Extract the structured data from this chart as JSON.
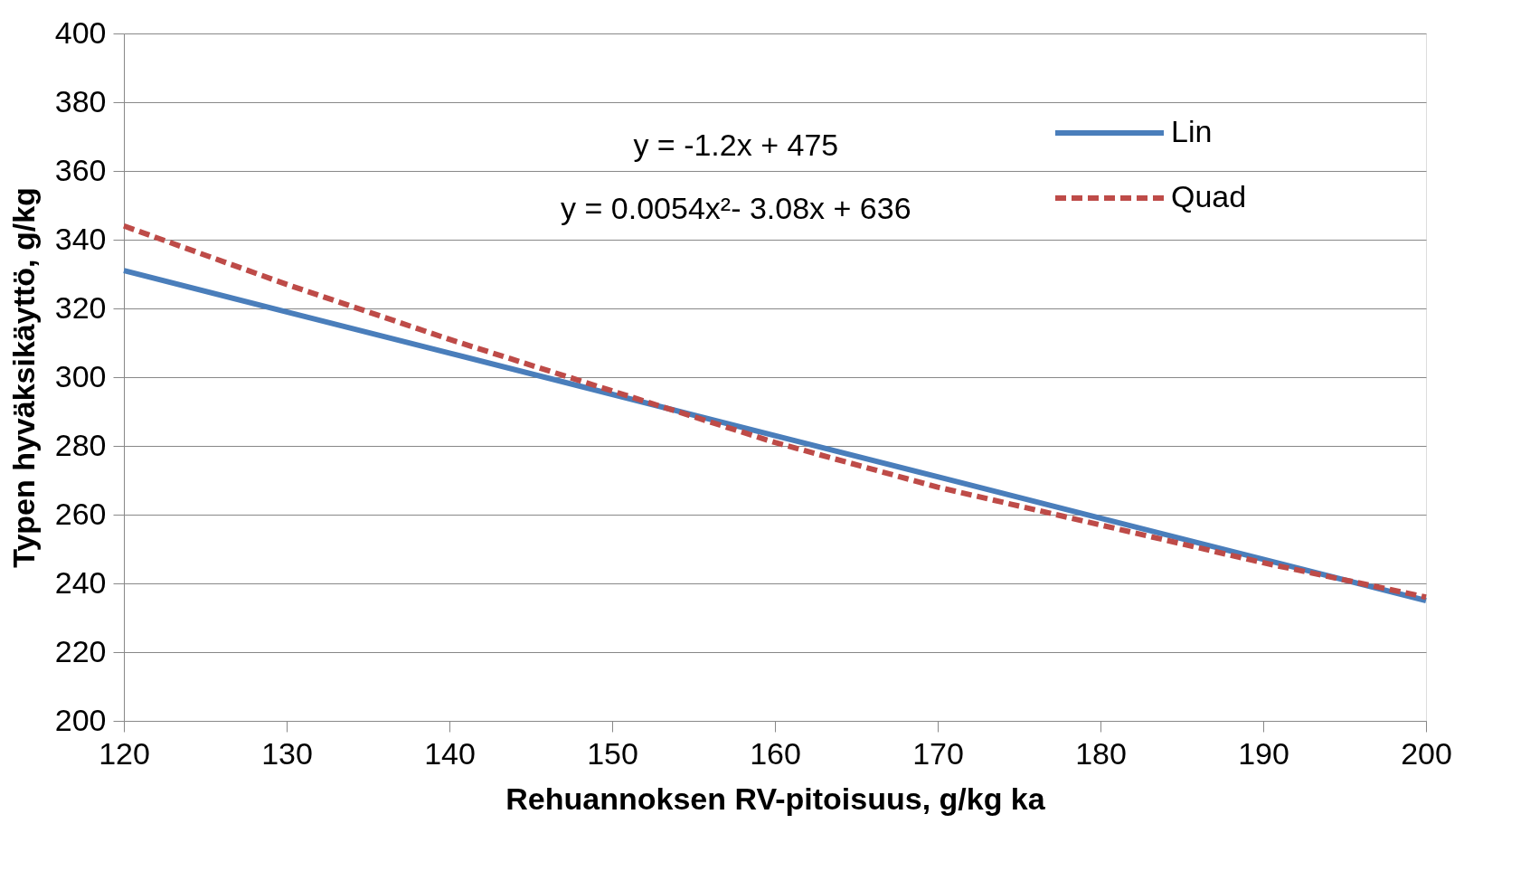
{
  "chart_data": {
    "type": "line",
    "xlabel": "Rehuannoksen RV-pitoisuus, g/kg ka",
    "ylabel": "Typen hyväksikäyttö, g/kg",
    "x": [
      120,
      130,
      140,
      150,
      160,
      170,
      180,
      190,
      200
    ],
    "series": [
      {
        "name": "Lin",
        "color": "#4a7ebb",
        "line_style": "solid",
        "values": [
          331,
          319,
          307,
          295,
          283,
          271,
          259,
          247,
          235
        ]
      },
      {
        "name": "Quad",
        "color": "#be4b48",
        "line_style": "dashed",
        "values": [
          344,
          327,
          311,
          296,
          281,
          268,
          257,
          246,
          236
        ]
      }
    ],
    "annotations": [
      "y = -1.2x + 475",
      "y =  0.0054x²- 3.08x + 636"
    ],
    "xlim": [
      120,
      200
    ],
    "xticks": [
      120,
      130,
      140,
      150,
      160,
      170,
      180,
      190,
      200
    ],
    "ylim": [
      200,
      400
    ],
    "yticks": [
      200,
      220,
      240,
      260,
      280,
      300,
      320,
      340,
      360,
      380,
      400
    ],
    "grid": "y",
    "legend": "top right",
    "marker": "none"
  }
}
